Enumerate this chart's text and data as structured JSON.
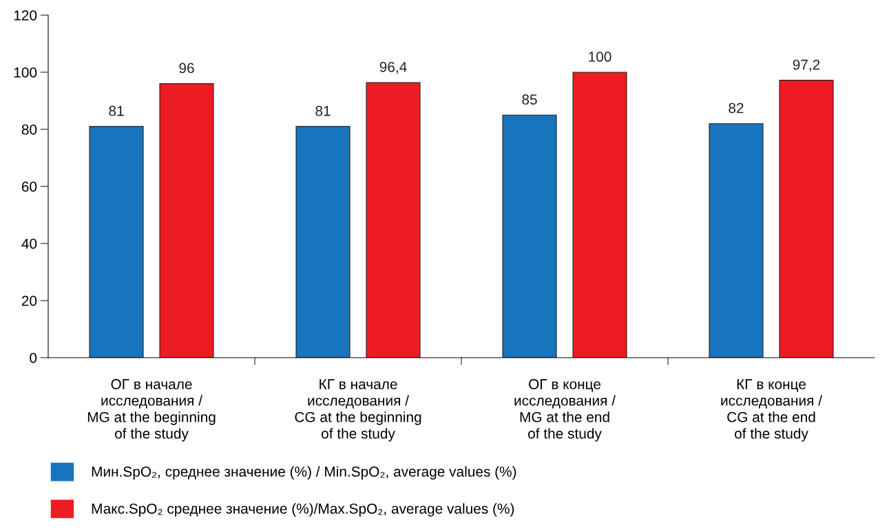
{
  "chart_data": {
    "type": "bar",
    "categories": [
      "ОГ в начале\nисследования /\nMG at the beginning\nof the study",
      "КГ в начале\nисследования /\nCG at the beginning\nof the study",
      "ОГ в конце\nисследования /\nMG at the end\nof the study",
      "КГ в конце\nисследования /\nCG at the end\nof the study"
    ],
    "series": [
      {
        "name": "Мин.SpO₂, среднее значение (%) / Min.SpO₂, average values (%)",
        "color": "#1874bd",
        "values": [
          81,
          81,
          85,
          82
        ],
        "value_labels": [
          "81",
          "81",
          "85",
          "82"
        ]
      },
      {
        "name": "Макс.SpO₂ среднее значение (%)/Max.SpO₂, average values (%)",
        "color": "#ed1c24",
        "values": [
          96,
          96.4,
          100,
          97.2
        ],
        "value_labels": [
          "96",
          "96,4",
          "100",
          "97,2"
        ]
      }
    ],
    "ylim": [
      0,
      120
    ],
    "yticks": [
      0,
      20,
      40,
      60,
      80,
      100,
      120
    ],
    "grid": false,
    "legend": "bottom"
  }
}
